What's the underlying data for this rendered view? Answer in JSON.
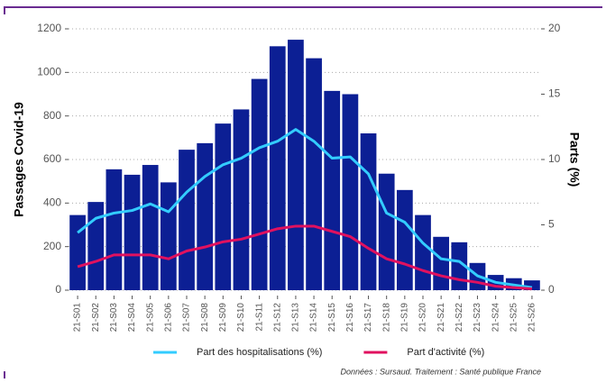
{
  "chart_data": {
    "type": "bar",
    "y_label": "Passages Covid-19",
    "y2_label": "Parts (%)",
    "caption": "Données : Sursaud. Traitement : Santé publique France",
    "categories": [
      "21-S01",
      "21-S02",
      "21-S03",
      "21-S04",
      "21-S05",
      "21-S06",
      "21-S07",
      "21-S08",
      "21-S09",
      "21-S10",
      "21-S11",
      "21-S12",
      "21-S13",
      "21-S14",
      "21-S15",
      "21-S16",
      "21-S17",
      "21-S18",
      "21-S19",
      "21-S20",
      "21-S21",
      "21-S22",
      "21-S23",
      "21-S24",
      "21-S25",
      "21-S26"
    ],
    "series": [
      {
        "type": "bar",
        "color": "#0c1f94",
        "values": [
          345,
          405,
          555,
          530,
          575,
          495,
          645,
          675,
          765,
          830,
          970,
          1120,
          1150,
          1065,
          915,
          900,
          720,
          535,
          460,
          345,
          245,
          220,
          125,
          70,
          55,
          45
        ]
      },
      {
        "type": "line",
        "name": "Part des hospitalisations (%)",
        "color": "#33ccff",
        "axis": "y2",
        "values": [
          4.4,
          5.5,
          5.9,
          6.1,
          6.6,
          6.0,
          7.5,
          8.7,
          9.6,
          10.1,
          10.9,
          11.4,
          12.3,
          11.4,
          10.1,
          10.2,
          8.9,
          5.9,
          5.2,
          3.6,
          2.4,
          2.2,
          1.1,
          0.6,
          0.4,
          0.2
        ]
      },
      {
        "type": "line",
        "name": "Part d'activité (%)",
        "color": "#e0115f",
        "axis": "y2",
        "values": [
          1.8,
          2.2,
          2.7,
          2.7,
          2.7,
          2.4,
          3.0,
          3.3,
          3.7,
          3.9,
          4.3,
          4.7,
          4.9,
          4.9,
          4.5,
          4.1,
          3.2,
          2.4,
          2.0,
          1.5,
          1.1,
          0.8,
          0.6,
          0.3,
          0.2,
          0.1
        ]
      }
    ],
    "ylim": [
      0,
      1200
    ],
    "yticks": [
      0,
      200,
      400,
      600,
      800,
      1000,
      1200
    ],
    "y2lim": [
      0,
      20
    ],
    "y2ticks": [
      0,
      5,
      10,
      15,
      20
    ],
    "grid": true,
    "legend": "bottom"
  }
}
